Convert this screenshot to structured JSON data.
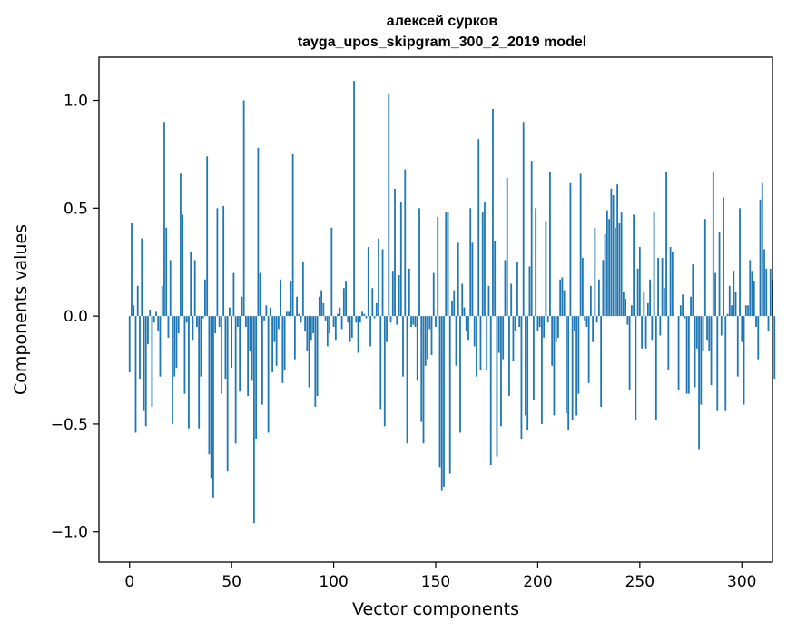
{
  "chart_data": {
    "type": "bar",
    "title_line1": "алексей сурков",
    "title_line2": "tayga_upos_skipgram_300_2_2019 model",
    "xlabel": "Vector components",
    "ylabel": "Components values",
    "xlim": [
      -15,
      315
    ],
    "ylim": [
      -1.14,
      1.2
    ],
    "xticks": [
      0,
      50,
      100,
      150,
      200,
      250,
      300
    ],
    "xtick_labels": [
      "0",
      "50",
      "100",
      "150",
      "200",
      "250",
      "300"
    ],
    "yticks": [
      -1.0,
      -0.5,
      0.0,
      0.5,
      1.0
    ],
    "ytick_labels": [
      "−1.0",
      "−0.5",
      "0.0",
      "0.5",
      "1.0"
    ],
    "bar_color": "#1f77b4",
    "grid": false,
    "values": [
      -0.26,
      0.43,
      0.05,
      -0.54,
      0.14,
      -0.29,
      0.36,
      -0.44,
      -0.51,
      -0.13,
      0.03,
      -0.42,
      -0.03,
      0.02,
      -0.07,
      -0.28,
      0.14,
      0.9,
      0.41,
      -0.1,
      0.26,
      -0.5,
      -0.28,
      -0.24,
      -0.08,
      0.66,
      0.47,
      -0.36,
      -0.03,
      -0.52,
      0.3,
      -0.11,
      0.26,
      -0.05,
      -0.52,
      -0.28,
      -0.01,
      0.17,
      0.74,
      -0.64,
      -0.75,
      -0.84,
      -0.08,
      0.5,
      -0.05,
      -0.36,
      0.51,
      -0.29,
      -0.72,
      0.04,
      -0.24,
      0.2,
      -0.59,
      -0.05,
      -0.35,
      0.09,
      1.0,
      -0.05,
      -0.37,
      -0.16,
      -0.3,
      -0.96,
      -0.57,
      0.78,
      0.2,
      -0.41,
      -0.02,
      0.05,
      -0.54,
      0.04,
      -0.26,
      -0.12,
      -0.23,
      -0.06,
      0.17,
      -0.31,
      -0.25,
      0.02,
      0.02,
      0.16,
      0.75,
      -0.2,
      0.09,
      0.01,
      -0.03,
      0.25,
      -0.07,
      -0.16,
      -0.33,
      -0.11,
      -0.08,
      -0.42,
      -0.37,
      0.09,
      0.12,
      0.06,
      -0.02,
      -0.14,
      -0.08,
      0.41,
      -0.05,
      -0.11,
      0.01,
      0.04,
      -0.06,
      0.13,
      0.16,
      -0.03,
      -0.12,
      -0.1,
      1.09,
      -0.03,
      -0.17,
      -0.03,
      0.02,
      0.01,
      -0.01,
      0.32,
      -0.14,
      0.13,
      -0.01,
      0.06,
      0.36,
      -0.43,
      0.31,
      -0.51,
      -0.12,
      1.03,
      -0.03,
      0.21,
      0.59,
      -0.04,
      0.19,
      0.53,
      -0.28,
      0.68,
      -0.59,
      0.22,
      -0.05,
      -0.04,
      -0.05,
      -0.3,
      0.5,
      -0.49,
      -0.59,
      -0.23,
      -0.2,
      -0.06,
      -0.18,
      0.2,
      -0.05,
      0.46,
      -0.7,
      -0.81,
      -0.79,
      0.48,
      0.48,
      -0.73,
      0.07,
      0.12,
      -0.23,
      0.34,
      -0.54,
      0.15,
      0.04,
      -0.07,
      -0.11,
      0.5,
      0.34,
      -0.14,
      -0.28,
      0.82,
      -0.25,
      0.48,
      0.53,
      -0.25,
      0.14,
      -0.69,
      0.96,
      0.35,
      -0.65,
      -0.17,
      -0.51,
      -0.2,
      0.26,
      0.64,
      -0.37,
      0.15,
      -0.21,
      -0.07,
      0.25,
      -0.05,
      -0.57,
      0.9,
      -0.46,
      -0.53,
      0.23,
      0.72,
      -0.39,
      0.5,
      -0.07,
      -0.05,
      -0.5,
      -0.1,
      0.44,
      -0.03,
      0.67,
      -0.23,
      -0.46,
      -0.12,
      -0.1,
      0.17,
      0.18,
      0.12,
      -0.45,
      -0.53,
      0.62,
      -0.48,
      -0.07,
      -0.46,
      -0.36,
      0.66,
      0.27,
      -0.02,
      -0.05,
      -0.31,
      0.14,
      -0.12,
      0.41,
      -0.03,
      0.17,
      -0.42,
      0.26,
      0.38,
      0.49,
      0.45,
      0.59,
      0.56,
      0.41,
      0.61,
      0.43,
      0.48,
      0.11,
      0.08,
      -0.04,
      -0.34,
      0.05,
      0.47,
      -0.48,
      0.22,
      0.32,
      -0.15,
      0.11,
      -0.15,
      0.06,
      0.17,
      -0.11,
      0.48,
      -0.48,
      0.27,
      -0.09,
      0.27,
      0.13,
      0.67,
      -0.25,
      0.32,
      0.3,
      0.0,
      0.0,
      -0.34,
      0.05,
      0.1,
      -0.01,
      -0.36,
      -0.36,
      0.09,
      0.24,
      -0.33,
      -0.15,
      -0.62,
      -0.41,
      -0.16,
      0.45,
      -0.11,
      -0.16,
      -0.32,
      0.67,
      0.2,
      -0.44,
      0.39,
      -0.09,
      0.55,
      -0.44,
      0.01,
      0.14,
      0.05,
      0.21,
      0.11,
      -0.28,
      0.5,
      -0.12,
      -0.41,
      0.05,
      0.05,
      0.26,
      0.21,
      0.16,
      -0.05,
      -0.2,
      0.54,
      0.62,
      0.31,
      0.22,
      -0.07,
      0.22,
      0.17,
      -0.29
    ]
  }
}
